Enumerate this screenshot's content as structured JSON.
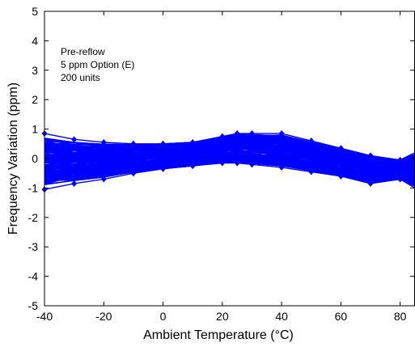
{
  "chart_data": {
    "type": "line",
    "xlabel": "Ambient Temperature (°C)",
    "ylabel": "Frequency Variation (ppm)",
    "xlim": [
      -40,
      85
    ],
    "ylim": [
      -5,
      5
    ],
    "xticks": [
      -40,
      -20,
      0,
      20,
      40,
      60,
      80
    ],
    "yticks": [
      -5,
      -4,
      -3,
      -2,
      -1,
      0,
      1,
      2,
      3,
      4,
      5
    ],
    "grid": false,
    "series_color": "#0000ff",
    "annotations": [
      "Pre-reflow",
      "5 ppm Option (E)",
      "200 units"
    ],
    "x": [
      -40,
      -30,
      -20,
      -10,
      0,
      10,
      20,
      25,
      30,
      40,
      50,
      60,
      70,
      80,
      85
    ],
    "envelope_upper": [
      0.85,
      0.65,
      0.55,
      0.5,
      0.5,
      0.55,
      0.75,
      0.85,
      0.85,
      0.85,
      0.6,
      0.35,
      0.1,
      -0.05,
      0.2
    ],
    "envelope_lower": [
      -1.05,
      -0.85,
      -0.7,
      -0.5,
      -0.35,
      -0.25,
      -0.15,
      -0.15,
      -0.2,
      -0.3,
      -0.45,
      -0.6,
      -0.85,
      -0.7,
      -1.0
    ],
    "typical_center": [
      -0.1,
      -0.1,
      -0.07,
      0.0,
      0.07,
      0.15,
      0.3,
      0.35,
      0.33,
      0.27,
      0.08,
      -0.13,
      -0.37,
      -0.38,
      -0.4
    ],
    "units_shown": 200
  }
}
